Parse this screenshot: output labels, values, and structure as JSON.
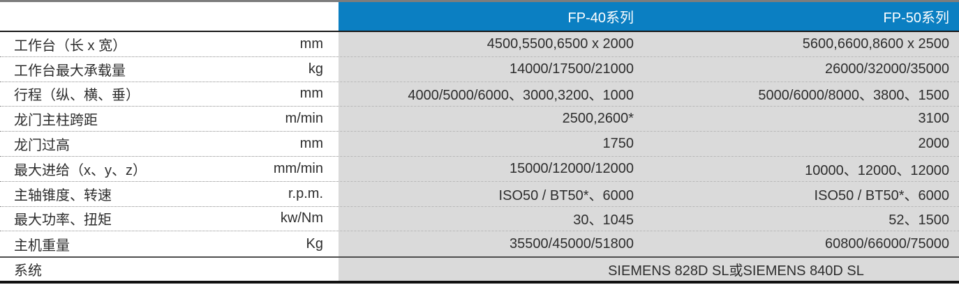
{
  "header": {
    "col1_label": "FP-40系列",
    "col2_label": "FP-50系列"
  },
  "rows": [
    {
      "label": "工作台（长 x 宽）",
      "unit": "mm",
      "fp40": "4500,5500,6500 x 2000",
      "fp50": "5600,6600,8600 x 2500"
    },
    {
      "label": "工作台最大承载量",
      "unit": "kg",
      "fp40": "14000/17500/21000",
      "fp50": "26000/32000/35000"
    },
    {
      "label": "行程（纵、横、垂）",
      "unit": "mm",
      "fp40": "4000/5000/6000、3000,3200、1000",
      "fp50": "5000/6000/8000、3800、1500"
    },
    {
      "label": "龙门主柱跨距",
      "unit": "m/min",
      "fp40": "2500,2600*",
      "fp50": "3100"
    },
    {
      "label": "龙门过高",
      "unit": "mm",
      "fp40": "1750",
      "fp50": "2000"
    },
    {
      "label": "最大进给（x、y、z）",
      "unit": "mm/min",
      "fp40": "15000/12000/12000",
      "fp50": "10000、12000、12000"
    },
    {
      "label": "主轴锥度、转速",
      "unit": "r.p.m.",
      "fp40": "ISO50 / BT50*、6000",
      "fp50": "ISO50 / BT50*、6000"
    },
    {
      "label": "最大功率、扭矩",
      "unit": "kw/Nm",
      "fp40": "30、1045",
      "fp50": "52、1500"
    },
    {
      "label": "主机重量",
      "unit": "Kg",
      "fp40": "35500/45000/51800",
      "fp50": "60800/66000/75000"
    }
  ],
  "footer": {
    "label": "系统",
    "unit": "",
    "value": "SIEMENS 828D SL或SIEMENS 840D SL"
  },
  "colors": {
    "header_blue": "#0b7fc2",
    "value_gray": "#dadada",
    "text_dark": "#2d2d2d",
    "header_text": "#ffffff"
  }
}
